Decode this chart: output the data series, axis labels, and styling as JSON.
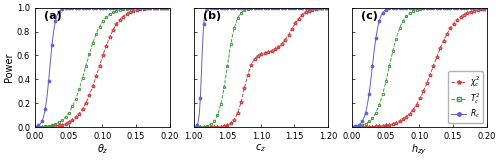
{
  "panels": [
    {
      "label": "(a)",
      "xlabel": "$\\theta_z$",
      "xmin": 0.0,
      "xmax": 0.2,
      "xticks": [
        0.0,
        0.05,
        0.1,
        0.15,
        0.2
      ]
    },
    {
      "label": "(b)",
      "xlabel": "$c_z$",
      "xmin": 1.0,
      "xmax": 1.2,
      "xticks": [
        1.0,
        1.05,
        1.1,
        1.15,
        1.2
      ]
    },
    {
      "label": "(c)",
      "xlabel": "$h_{zy}$",
      "xmin": 0.0,
      "xmax": 0.2,
      "xticks": [
        0.0,
        0.05,
        0.1,
        0.15,
        0.2
      ]
    }
  ],
  "ylabel": "Power",
  "ylim": [
    0.0,
    1.0
  ],
  "yticks": [
    0.0,
    0.2,
    0.4,
    0.6,
    0.8,
    1.0
  ],
  "colors": {
    "chi2": "#d04040",
    "T2": "#40a040",
    "GLR": "#6060d0"
  },
  "legend_labels": [
    "$\\chi^2_c$",
    "$T^2_c$",
    "$R_c$"
  ],
  "figsize": [
    5.0,
    1.61
  ],
  "dpi": 100,
  "n_points": 120,
  "markevery": 3
}
